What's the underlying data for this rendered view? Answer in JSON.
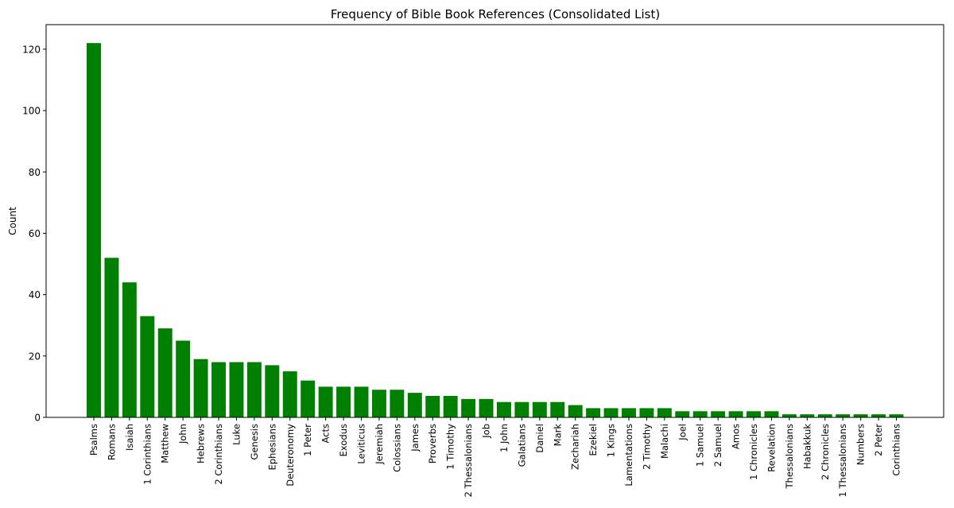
{
  "chart_data": {
    "type": "bar",
    "title": "Frequency of Bible Book References (Consolidated List)",
    "xlabel": "",
    "ylabel": "Count",
    "ylim": [
      0,
      128
    ],
    "yticks": [
      0,
      20,
      40,
      60,
      80,
      100,
      120
    ],
    "bar_color": "#008000",
    "grid": false,
    "categories": [
      "Psalms",
      "Romans",
      "Isaiah",
      "1 Corinthians",
      "Matthew",
      "John",
      "Hebrews",
      "2 Corinthians",
      "Luke",
      "Genesis",
      "Ephesians",
      "Deuteronomy",
      "1 Peter",
      "Acts",
      "Exodus",
      "Leviticus",
      "Jeremiah",
      "Colossians",
      "James",
      "Proverbs",
      "1 Timothy",
      "2 Thessalonians",
      "Job",
      "1 John",
      "Galatians",
      "Daniel",
      "Mark",
      "Zechariah",
      "Ezekiel",
      "1 Kings",
      "Lamentations",
      "2 Timothy",
      "Malachi",
      "Joel",
      "1 Samuel",
      "2 Samuel",
      "Amos",
      "1 Chronicles",
      "Revelation",
      "Thessalonians",
      "Habakkuk",
      "2 Chronicles",
      "1 Thessalonians",
      "Numbers",
      "2 Peter",
      "Corinthians"
    ],
    "values": [
      122,
      52,
      44,
      33,
      29,
      25,
      19,
      18,
      18,
      18,
      17,
      15,
      12,
      10,
      10,
      10,
      9,
      9,
      8,
      7,
      7,
      6,
      6,
      5,
      5,
      5,
      5,
      4,
      3,
      3,
      3,
      3,
      3,
      2,
      2,
      2,
      2,
      2,
      2,
      1,
      1,
      1,
      1,
      1,
      1,
      1
    ]
  }
}
